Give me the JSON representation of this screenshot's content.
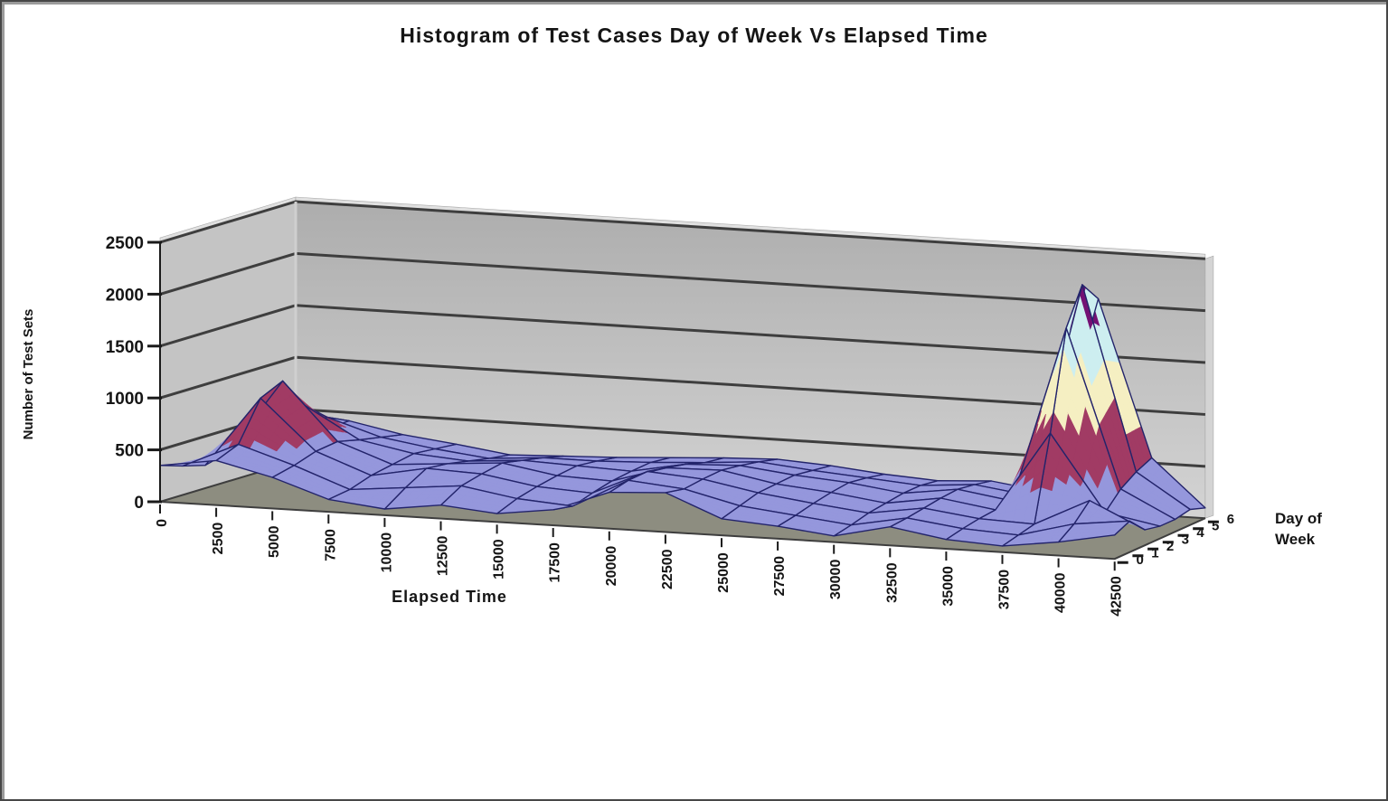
{
  "frame": {
    "background": "#ffffff",
    "border_color": "#474747"
  },
  "chart_data": {
    "type": "surface",
    "title": "Histogram of Test Cases Day of Week Vs Elapsed Time",
    "xlabel": "Elapsed Time",
    "series_axis_label": "Day of Week",
    "ylabel": "Number of Test Sets",
    "x_categories": [
      "0",
      "2500",
      "5000",
      "7500",
      "10000",
      "12500",
      "15000",
      "17500",
      "20000",
      "22500",
      "25000",
      "27500",
      "30000",
      "32500",
      "35000",
      "37500",
      "40000",
      "42500"
    ],
    "series_categories": [
      "0",
      "1",
      "2",
      "3",
      "4",
      "5",
      "6"
    ],
    "y_ticks": [
      "0",
      "500",
      "1000",
      "1500",
      "2000",
      "2500"
    ],
    "ylim": [
      0,
      2500
    ],
    "grid": true,
    "legend": "none",
    "value_bands": [
      {
        "name": "0-500",
        "range": [
          0,
          500
        ],
        "color": "#9597dc"
      },
      {
        "name": "500-1000",
        "range": [
          500,
          1000
        ],
        "color": "#a13b64"
      },
      {
        "name": "1000-1500",
        "range": [
          1000,
          1500
        ],
        "color": "#f5efc2"
      },
      {
        "name": "1500-2000",
        "range": [
          1500,
          2000
        ],
        "color": "#cdeef0"
      },
      {
        "name": "2000-2500",
        "range": [
          2000,
          2500
        ],
        "color": "#741074"
      }
    ],
    "series": [
      {
        "name": "0",
        "values": [
          350,
          430,
          300,
          120,
          60,
          130,
          80,
          150,
          350,
          380,
          160,
          120,
          60,
          180,
          90,
          60,
          130,
          230
        ]
      },
      {
        "name": "1",
        "values": [
          280,
          520,
          350,
          150,
          200,
          250,
          160,
          120,
          400,
          350,
          220,
          160,
          100,
          200,
          130,
          100,
          240,
          300
        ]
      },
      {
        "name": "2",
        "values": [
          220,
          900,
          420,
          220,
          320,
          300,
          210,
          180,
          420,
          380,
          280,
          210,
          150,
          230,
          160,
          140,
          400,
          150
        ]
      },
      {
        "name": "3",
        "values": [
          280,
          1000,
          450,
          260,
          300,
          340,
          250,
          230,
          390,
          400,
          300,
          250,
          180,
          260,
          180,
          950,
          220,
          120
        ]
      },
      {
        "name": "4",
        "values": [
          320,
          700,
          400,
          300,
          260,
          300,
          280,
          260,
          360,
          380,
          320,
          280,
          210,
          280,
          200,
          1900,
          380,
          120
        ]
      },
      {
        "name": "5",
        "values": [
          260,
          520,
          360,
          280,
          220,
          260,
          260,
          280,
          310,
          350,
          300,
          260,
          220,
          260,
          190,
          2250,
          480,
          150
        ]
      },
      {
        "name": "6",
        "values": [
          210,
          420,
          320,
          260,
          190,
          210,
          230,
          260,
          290,
          310,
          280,
          230,
          200,
          230,
          160,
          2050,
          550,
          100
        ]
      }
    ]
  },
  "colors": {
    "back_wall_top": "#aeaeae",
    "back_wall_bottom": "#d8d8d8",
    "left_wall": "#c4c4c4",
    "wall_edge": "#e0e0e0",
    "wall_side": "#d4d4d4",
    "floor": "#8d8d80",
    "gridline": "#3e3e3e",
    "mesh": "#23246b",
    "axis": "#1a1a1a",
    "text": "#151515"
  }
}
